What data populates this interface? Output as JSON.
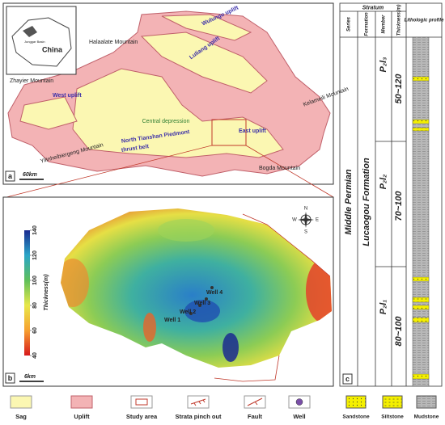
{
  "panel_a": {
    "label": "a",
    "scale": "60km",
    "inset": {
      "country": "China",
      "basin": "Junggar Basin"
    },
    "places": [
      "Halaalate Mountain",
      "Wulungu uplift",
      "Luliang uplift",
      "Zhayier Mountain",
      "West uplift",
      "Kelameili Mountain",
      "Central depression",
      "East uplift",
      "North Tianshan Piedmont",
      "thrust belt",
      "Yilinheibiergeng Mountain",
      "Bogda Mountain"
    ]
  },
  "panel_b": {
    "label": "b",
    "scale": "6km",
    "colorbar": {
      "label": "Thickness(m)",
      "lim": [
        40,
        140
      ],
      "ticks": [
        40,
        60,
        80,
        100,
        120,
        140
      ]
    },
    "compass": [
      "N",
      "S",
      "W",
      "E"
    ],
    "wells": [
      "Well 1",
      "Well 2",
      "Well 3",
      "Well 4"
    ]
  },
  "panel_c": {
    "label": "c",
    "header": {
      "group": "Stratum",
      "columns": [
        "Series",
        "Formation",
        "Member",
        "Thickness(m)",
        "Lithologic profile"
      ]
    },
    "series": "Middle Permian",
    "formation": "Lucaogou Formation",
    "members": [
      {
        "name": "P₂l₃",
        "thickness": "50~120"
      },
      {
        "name": "P₂l₂",
        "thickness": "70~100"
      },
      {
        "name": "P₂l₁",
        "thickness": "80~100"
      }
    ]
  },
  "legend": [
    "Sag",
    "Uplift",
    "Study area",
    "Strata pinch out",
    "Fault",
    "Well",
    "Sandstone",
    "Siltstone",
    "Mudstone"
  ]
}
